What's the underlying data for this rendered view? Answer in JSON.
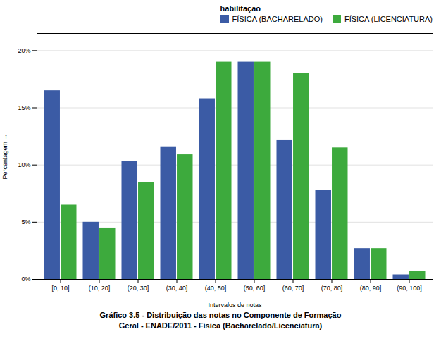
{
  "chart_data": {
    "type": "bar",
    "title": "Gráfico 3.5 - Distribuição das notas no Componente de Formação\nGeral - ENADE/2011 - Física (Bacharelado/Licenciatura)",
    "xlabel": "Intervalos de notas",
    "ylabel": "Percentagem",
    "categories": [
      "[0; 10]",
      "(10; 20]",
      "(20; 30]",
      "(30; 40]",
      "(40; 50]",
      "(50; 60]",
      "(60; 70]",
      "(70; 80]",
      "(80; 90]",
      "(90; 100]"
    ],
    "series": [
      {
        "name": "FÍSICA (BACHARELADO)",
        "color": "#3B5BA5",
        "values": [
          16.5,
          5.0,
          10.3,
          11.6,
          15.8,
          19.0,
          12.2,
          7.8,
          2.7,
          0.4
        ]
      },
      {
        "name": "FÍSICA (LICENCIATURA)",
        "color": "#3DAA3D",
        "values": [
          6.5,
          4.5,
          8.5,
          10.9,
          19.0,
          19.0,
          18.0,
          11.5,
          2.7,
          0.7
        ]
      }
    ],
    "ylim": [
      0,
      21.5
    ],
    "yticks": [
      {
        "value": 0,
        "label": "0%"
      },
      {
        "value": 5.0,
        "label": "5%"
      },
      {
        "value": 10.0,
        "label": "10%"
      },
      {
        "value": 15.0,
        "label": "15%"
      },
      {
        "value": 20.0,
        "label": "20%"
      }
    ],
    "grid": true,
    "legend": "upper right",
    "legend_title": "habilitação"
  }
}
